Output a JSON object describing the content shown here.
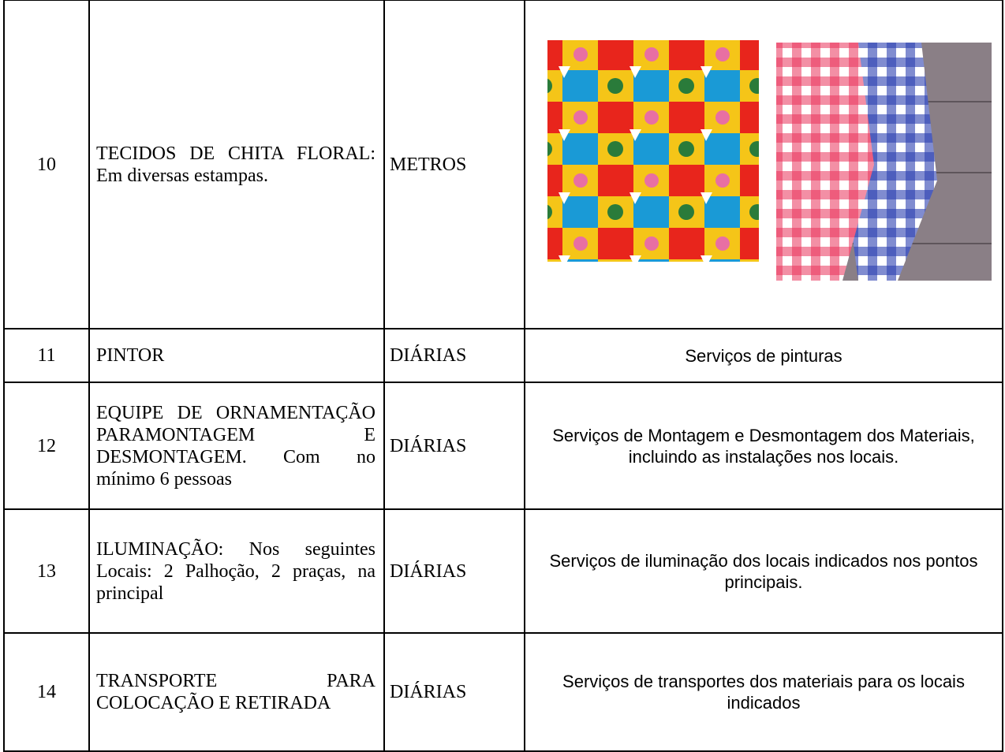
{
  "table": {
    "rows": [
      {
        "number": "10",
        "item": "TECIDOS DE CHITA FLORAL: Em diversas estampas.",
        "unit": "METROS"
      },
      {
        "number": "11",
        "item": "PINTOR",
        "unit": "DIÁRIAS",
        "description": "Serviços de pinturas"
      },
      {
        "number": "12",
        "item": "EQUIPE DE ORNAMENTAÇÃO PARAMONTAGEM E DESMONTAGEM. Com no mínimo 6 pessoas",
        "unit": "DIÁRIAS",
        "description": "Serviços de Montagem e Desmontagem dos Materiais, incluindo as instalações nos locais."
      },
      {
        "number": "13",
        "item": "ILUMINAÇÃO: Nos seguintes Locais: 2 Palhoção, 2 praças, na principal",
        "unit": "DIÁRIAS",
        "description": "Serviços de iluminação dos locais indicados nos pontos principais."
      },
      {
        "number": "14",
        "item": "TRANSPORTE PARA COLOCAÇÃO E RETIRADA",
        "unit": "DIÁRIAS",
        "description": "Serviços de transportes dos materiais para os locais indicados"
      }
    ]
  }
}
